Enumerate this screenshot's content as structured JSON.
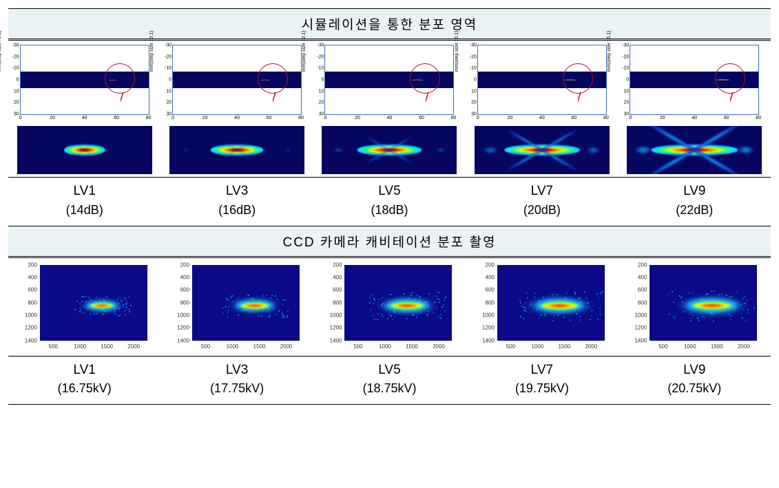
{
  "section1": {
    "title": "시뮬레이션을 통한 분포 영역",
    "ylabel": "mm(step size : 0.1)",
    "yTicks": [
      "-30",
      "-20",
      "-10",
      "0",
      "10",
      "20",
      "30"
    ],
    "xTicks": [
      "0",
      "20",
      "40",
      "60",
      "80"
    ],
    "band_color": "#06065f",
    "circle_color": "#b01616",
    "panels": [
      {
        "label": "LV1",
        "sub": "(14dB)",
        "scale": 0.55,
        "lobe": 0.15
      },
      {
        "label": "LV3",
        "sub": "(16dB)",
        "scale": 0.7,
        "lobe": 0.28
      },
      {
        "label": "LV5",
        "sub": "(18dB)",
        "scale": 0.85,
        "lobe": 0.45
      },
      {
        "label": "LV7",
        "sub": "(20dB)",
        "scale": 1.0,
        "lobe": 0.7
      },
      {
        "label": "LV9",
        "sub": "(22dB)",
        "scale": 1.15,
        "lobe": 0.95
      }
    ],
    "jet": {
      "deep": "#06065f",
      "blue": "#1030d0",
      "cyan": "#00e0ff",
      "green": "#30ff60",
      "yellow": "#fff000",
      "orange": "#ff8c00",
      "red": "#d01000",
      "dark": "#6b0000"
    }
  },
  "section2": {
    "title": "CCD 카메라 캐비테이션 분포 촬영",
    "yTicks": [
      "200",
      "400",
      "600",
      "800",
      "1000",
      "1200",
      "1400"
    ],
    "xTicks": [
      "500",
      "1000",
      "1500",
      "2000"
    ],
    "bg": "#0a0a88",
    "panels": [
      {
        "label": "LV1",
        "sub": "(16.75kV)",
        "w": 0.4,
        "h": 0.22
      },
      {
        "label": "LV3",
        "sub": "(17.75kV)",
        "w": 0.48,
        "h": 0.26
      },
      {
        "label": "LV5",
        "sub": "(18.75kV)",
        "w": 0.56,
        "h": 0.3
      },
      {
        "label": "LV7",
        "sub": "(19.75kV)",
        "w": 0.62,
        "h": 0.32
      },
      {
        "label": "LV9",
        "sub": "(20.75kV)",
        "w": 0.66,
        "h": 0.34
      }
    ],
    "jet": {
      "cyan": "#1fc8ff",
      "green": "#2dff6a",
      "yellow": "#fff200",
      "orange": "#ff7a00",
      "red": "#ff2a00"
    }
  }
}
